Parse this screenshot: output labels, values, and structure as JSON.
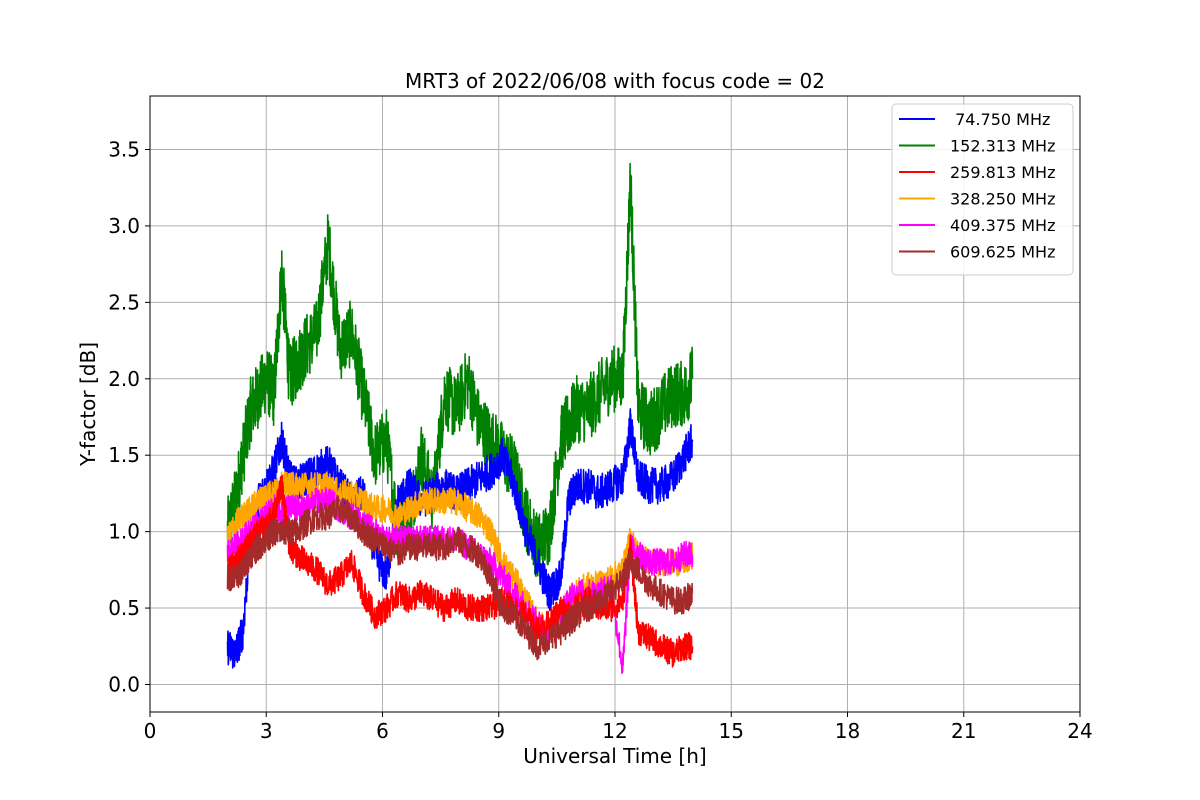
{
  "chart_data": {
    "type": "line",
    "title": "MRT3 of 2022/06/08 with focus code = 02",
    "xlabel": "Universal Time [h]",
    "ylabel": "Y-factor [dB]",
    "xlim": [
      0,
      24
    ],
    "ylim": [
      -0.18,
      3.85
    ],
    "xticks": [
      0,
      3,
      6,
      9,
      12,
      15,
      18,
      21,
      24
    ],
    "yticks": [
      0.0,
      0.5,
      1.0,
      1.5,
      2.0,
      2.5,
      3.0,
      3.5
    ],
    "ytick_labels": [
      "0.0",
      "0.5",
      "1.0",
      "1.5",
      "2.0",
      "2.5",
      "3.0",
      "3.5"
    ],
    "grid": true,
    "legend_position": "top-right",
    "series": [
      {
        "name": " 74.750 MHz",
        "color": "#0000ff",
        "x": [
          2.0,
          2.2,
          2.4,
          2.6,
          2.8,
          3.0,
          3.2,
          3.4,
          3.6,
          3.8,
          4.0,
          4.3,
          4.6,
          4.9,
          5.2,
          5.5,
          5.8,
          6.1,
          6.4,
          6.7,
          7.0,
          7.3,
          7.6,
          7.9,
          8.2,
          8.5,
          8.8,
          9.1,
          9.4,
          9.7,
          10.0,
          10.3,
          10.6,
          10.8,
          11.0,
          11.3,
          11.6,
          11.9,
          12.2,
          12.4,
          12.6,
          12.9,
          13.2,
          13.5,
          13.8,
          14.0
        ],
        "y": [
          0.25,
          0.2,
          0.35,
          1.0,
          1.2,
          1.3,
          1.4,
          1.6,
          1.35,
          1.3,
          1.35,
          1.4,
          1.45,
          1.3,
          1.2,
          1.25,
          0.85,
          0.7,
          1.2,
          1.3,
          1.2,
          1.25,
          1.3,
          1.25,
          1.3,
          1.35,
          1.4,
          1.5,
          1.3,
          1.0,
          0.8,
          0.6,
          0.7,
          1.2,
          1.3,
          1.3,
          1.25,
          1.3,
          1.35,
          1.7,
          1.35,
          1.3,
          1.3,
          1.35,
          1.5,
          1.6
        ]
      },
      {
        "name": "152.313 MHz",
        "color": "#008000",
        "x": [
          2.0,
          2.2,
          2.4,
          2.6,
          2.8,
          3.0,
          3.2,
          3.4,
          3.6,
          3.8,
          4.0,
          4.3,
          4.6,
          4.9,
          5.2,
          5.5,
          5.8,
          6.1,
          6.4,
          6.7,
          7.0,
          7.3,
          7.6,
          7.9,
          8.2,
          8.5,
          8.8,
          9.1,
          9.4,
          9.7,
          10.0,
          10.3,
          10.6,
          10.8,
          11.0,
          11.3,
          11.6,
          11.9,
          12.2,
          12.4,
          12.6,
          12.9,
          13.2,
          13.5,
          13.8,
          14.0
        ],
        "y": [
          1.0,
          1.2,
          1.5,
          1.8,
          1.9,
          2.0,
          1.9,
          2.7,
          2.0,
          2.1,
          2.2,
          2.3,
          2.9,
          2.2,
          2.3,
          1.9,
          1.5,
          1.6,
          1.0,
          1.1,
          1.5,
          1.2,
          1.9,
          1.8,
          2.0,
          1.7,
          1.6,
          1.5,
          1.4,
          1.1,
          0.9,
          1.0,
          1.6,
          1.7,
          1.8,
          1.8,
          1.9,
          2.0,
          2.0,
          3.3,
          1.8,
          1.7,
          1.8,
          1.9,
          1.9,
          2.0
        ]
      },
      {
        "name": "259.813 MHz",
        "color": "#ff0000",
        "x": [
          2.0,
          2.2,
          2.4,
          2.6,
          2.8,
          3.0,
          3.2,
          3.4,
          3.6,
          3.8,
          4.0,
          4.3,
          4.6,
          4.9,
          5.2,
          5.5,
          5.8,
          6.1,
          6.4,
          6.7,
          7.0,
          7.3,
          7.6,
          7.9,
          8.2,
          8.5,
          8.8,
          9.1,
          9.4,
          9.7,
          10.0,
          10.3,
          10.6,
          10.8,
          11.0,
          11.3,
          11.6,
          11.9,
          12.2,
          12.4,
          12.6,
          12.9,
          13.2,
          13.5,
          13.8,
          14.0
        ],
        "y": [
          0.75,
          0.8,
          0.85,
          0.95,
          1.0,
          1.05,
          1.1,
          1.3,
          0.9,
          0.85,
          0.8,
          0.75,
          0.65,
          0.7,
          0.8,
          0.6,
          0.45,
          0.5,
          0.6,
          0.55,
          0.6,
          0.55,
          0.5,
          0.55,
          0.5,
          0.5,
          0.5,
          0.55,
          0.5,
          0.45,
          0.35,
          0.4,
          0.5,
          0.45,
          0.5,
          0.55,
          0.5,
          0.5,
          0.55,
          0.9,
          0.35,
          0.3,
          0.25,
          0.2,
          0.25,
          0.25
        ]
      },
      {
        "name": "328.250 MHz",
        "color": "#ffa500",
        "x": [
          2.0,
          2.2,
          2.4,
          2.6,
          2.8,
          3.0,
          3.2,
          3.4,
          3.6,
          3.8,
          4.0,
          4.3,
          4.6,
          4.9,
          5.2,
          5.5,
          5.8,
          6.1,
          6.4,
          6.7,
          7.0,
          7.3,
          7.6,
          7.9,
          8.2,
          8.5,
          8.8,
          9.1,
          9.4,
          9.7,
          10.0,
          10.3,
          10.6,
          10.8,
          11.0,
          11.3,
          11.6,
          11.9,
          12.2,
          12.4,
          12.6,
          12.9,
          13.2,
          13.5,
          13.8,
          14.0
        ],
        "y": [
          0.95,
          1.05,
          1.1,
          1.15,
          1.2,
          1.25,
          1.25,
          1.3,
          1.3,
          1.3,
          1.3,
          1.3,
          1.3,
          1.25,
          1.25,
          1.2,
          1.15,
          1.15,
          1.1,
          1.15,
          1.2,
          1.2,
          1.2,
          1.2,
          1.15,
          1.1,
          1.0,
          0.8,
          0.7,
          0.55,
          0.4,
          0.35,
          0.45,
          0.55,
          0.6,
          0.65,
          0.65,
          0.7,
          0.75,
          0.95,
          0.85,
          0.8,
          0.8,
          0.8,
          0.8,
          0.85
        ]
      },
      {
        "name": "409.375 MHz",
        "color": "#ff00ff",
        "x": [
          2.0,
          2.2,
          2.4,
          2.6,
          2.8,
          3.0,
          3.2,
          3.4,
          3.6,
          3.8,
          4.0,
          4.3,
          4.6,
          4.9,
          5.2,
          5.5,
          5.8,
          6.1,
          6.4,
          6.7,
          7.0,
          7.3,
          7.6,
          7.9,
          8.2,
          8.5,
          8.8,
          9.1,
          9.4,
          9.7,
          10.0,
          10.3,
          10.6,
          10.8,
          11.0,
          11.3,
          11.6,
          11.9,
          12.2,
          12.4,
          12.6,
          12.9,
          13.2,
          13.5,
          13.8,
          14.0
        ],
        "y": [
          0.85,
          0.9,
          0.95,
          1.0,
          1.05,
          1.1,
          1.15,
          1.15,
          1.15,
          1.15,
          1.15,
          1.2,
          1.2,
          1.15,
          1.1,
          1.05,
          1.0,
          0.95,
          0.95,
          0.95,
          0.95,
          0.95,
          0.95,
          0.95,
          0.9,
          0.85,
          0.8,
          0.7,
          0.6,
          0.5,
          0.4,
          0.35,
          0.45,
          0.55,
          0.6,
          0.6,
          0.6,
          0.65,
          0.1,
          0.9,
          0.85,
          0.8,
          0.8,
          0.8,
          0.85,
          0.85
        ]
      },
      {
        "name": "609.625 MHz",
        "color": "#a52a2a",
        "x": [
          2.0,
          2.2,
          2.4,
          2.6,
          2.8,
          3.0,
          3.2,
          3.4,
          3.6,
          3.8,
          4.0,
          4.3,
          4.6,
          4.9,
          5.2,
          5.5,
          5.8,
          6.1,
          6.4,
          6.7,
          7.0,
          7.3,
          7.6,
          7.9,
          8.2,
          8.5,
          8.8,
          9.1,
          9.4,
          9.7,
          10.0,
          10.3,
          10.6,
          10.8,
          11.0,
          11.3,
          11.6,
          11.9,
          12.2,
          12.4,
          12.6,
          12.9,
          13.2,
          13.5,
          13.8,
          14.0
        ],
        "y": [
          0.7,
          0.7,
          0.75,
          0.85,
          0.9,
          0.95,
          1.0,
          1.0,
          1.0,
          1.0,
          1.05,
          1.1,
          1.1,
          1.15,
          1.1,
          1.0,
          0.95,
          0.9,
          0.85,
          0.9,
          0.9,
          0.9,
          0.9,
          0.95,
          0.9,
          0.85,
          0.7,
          0.5,
          0.45,
          0.35,
          0.25,
          0.3,
          0.35,
          0.4,
          0.45,
          0.5,
          0.55,
          0.6,
          0.7,
          0.8,
          0.75,
          0.65,
          0.6,
          0.55,
          0.55,
          0.6
        ]
      }
    ]
  }
}
